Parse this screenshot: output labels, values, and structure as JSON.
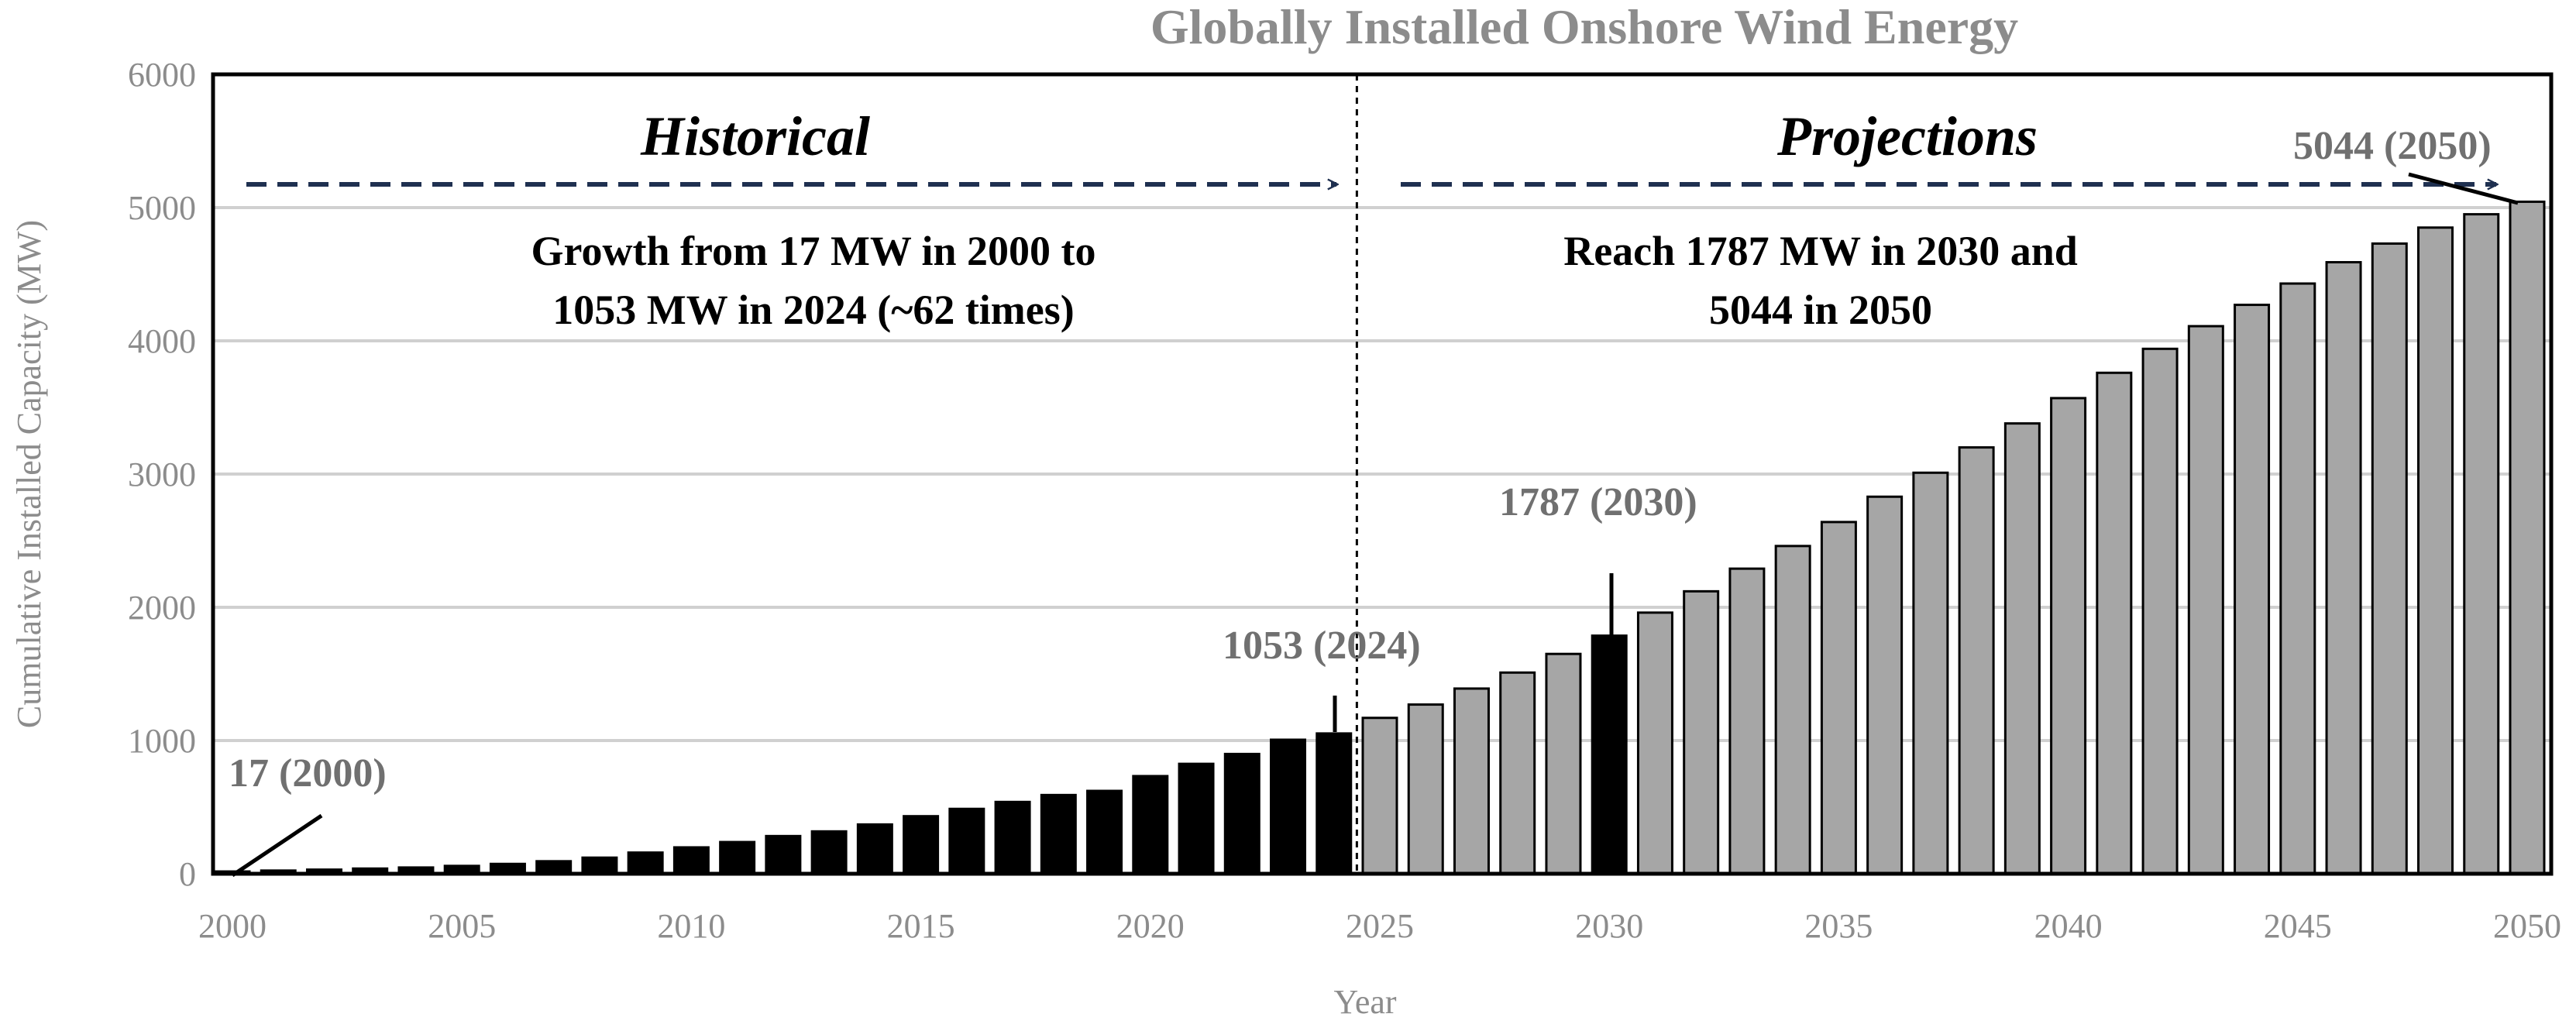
{
  "chart_data": {
    "type": "bar",
    "title": "Globally Installed Onshore Wind Energy",
    "xlabel": "Year",
    "ylabel": "Cumulative Installed Capacity (MW)",
    "ylim": [
      0,
      6000
    ],
    "yticks": [
      "0",
      "1000",
      "2000",
      "3000",
      "4000",
      "5000",
      "6000"
    ],
    "xticks": [
      "2000",
      "2005",
      "2010",
      "2015",
      "2020",
      "2025",
      "2030",
      "2035",
      "2040",
      "2045",
      "2050"
    ],
    "grid": true,
    "years": [
      2000,
      2001,
      2002,
      2003,
      2004,
      2005,
      2006,
      2007,
      2008,
      2009,
      2010,
      2011,
      2012,
      2013,
      2014,
      2015,
      2016,
      2017,
      2018,
      2019,
      2020,
      2021,
      2022,
      2023,
      2024,
      2025,
      2026,
      2027,
      2028,
      2029,
      2030,
      2031,
      2032,
      2033,
      2034,
      2035,
      2036,
      2037,
      2038,
      2039,
      2040,
      2041,
      2042,
      2043,
      2044,
      2045,
      2046,
      2047,
      2048,
      2049,
      2050
    ],
    "series": [
      {
        "name": "Historical",
        "color": "#000000",
        "values": [
          17,
          24,
          31,
          39,
          47,
          59,
          74,
          94,
          121,
          159,
          198,
          238,
          283,
          318,
          370,
          432,
          487,
          539,
          591,
          622,
          733,
          825,
          899,
          1006,
          1053
        ]
      },
      {
        "name": "Projections",
        "color": "#a6a6a6",
        "values": [
          1170,
          1270,
          1390,
          1510,
          1650,
          1787,
          1960,
          2120,
          2290,
          2460,
          2640,
          2830,
          3010,
          3200,
          3380,
          3570,
          3760,
          3940,
          4110,
          4270,
          4430,
          4590,
          4730,
          4850,
          4950,
          5044
        ]
      }
    ],
    "highlight_year": 2030,
    "highlight_color": "#000000",
    "divider_year": 2024.5,
    "regions": {
      "historical_label": "Historical",
      "projections_label": "Projections",
      "historical_note": [
        "Growth from 17 MW in 2000 to",
        "1053 MW in 2024 (~62 times)"
      ],
      "projections_note": [
        "Reach 1787 MW in 2030 and",
        "5044 in 2050"
      ]
    },
    "annotations": [
      {
        "text": "17 (2000)",
        "year": 2000,
        "value": 17
      },
      {
        "text": "1053 (2024)",
        "year": 2024,
        "value": 1053
      },
      {
        "text": "1787 (2030)",
        "year": 2030,
        "value": 1787
      },
      {
        "text": "5044 (2050)",
        "year": 2050,
        "value": 5044
      }
    ],
    "arrow_color": "#1f3050"
  }
}
